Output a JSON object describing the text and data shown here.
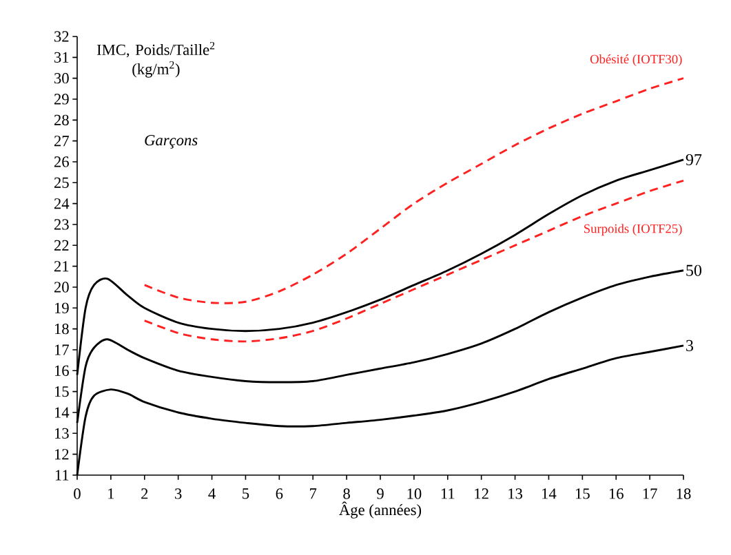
{
  "chart_data": {
    "type": "line",
    "xlabel": "Âge (années)",
    "ylabel": "IMC, Poids/Taille$^{2}$ (kg/m$^{2}$)",
    "annotations": [
      "Garçons"
    ],
    "xlim": [
      0,
      18
    ],
    "ylim": [
      11,
      32
    ],
    "xticks": [
      0,
      1,
      2,
      3,
      4,
      5,
      6,
      7,
      8,
      9,
      10,
      11,
      12,
      13,
      14,
      15,
      16,
      17,
      18
    ],
    "yticks": [
      11,
      12,
      13,
      14,
      15,
      16,
      17,
      18,
      19,
      20,
      21,
      22,
      23,
      24,
      25,
      26,
      27,
      28,
      29,
      30,
      31,
      32
    ],
    "grid": false,
    "legend": false,
    "marker": "none",
    "series": [
      {
        "name": "97",
        "color": "#000000",
        "line_style": "solid",
        "x": [
          0,
          0.25,
          0.5,
          0.9,
          1.5,
          2,
          3,
          4,
          5,
          6,
          7,
          8,
          9,
          10,
          11,
          12,
          13,
          14,
          15,
          16,
          17,
          18
        ],
        "values": [
          15.8,
          19,
          20.1,
          20.4,
          19.6,
          19.0,
          18.3,
          18.0,
          17.9,
          18.0,
          18.3,
          18.8,
          19.4,
          20.1,
          20.8,
          21.6,
          22.5,
          23.5,
          24.4,
          25.1,
          25.6,
          26.1
        ]
      },
      {
        "name": "50",
        "color": "#000000",
        "line_style": "solid",
        "x": [
          0,
          0.25,
          0.5,
          0.9,
          1.5,
          2,
          3,
          4,
          5,
          6,
          7,
          8,
          9,
          10,
          11,
          12,
          13,
          14,
          15,
          16,
          17,
          18
        ],
        "values": [
          13.5,
          16.2,
          17.1,
          17.5,
          17.0,
          16.6,
          16.0,
          15.7,
          15.5,
          15.45,
          15.5,
          15.8,
          16.1,
          16.4,
          16.8,
          17.3,
          18.0,
          18.8,
          19.5,
          20.1,
          20.5,
          20.8
        ]
      },
      {
        "name": "3",
        "color": "#000000",
        "line_style": "solid",
        "x": [
          0,
          0.25,
          0.5,
          1,
          1.5,
          2,
          3,
          4,
          5,
          6,
          7,
          8,
          9,
          10,
          11,
          12,
          13,
          14,
          15,
          16,
          17,
          18
        ],
        "values": [
          11.0,
          13.8,
          14.8,
          15.1,
          14.9,
          14.5,
          14.0,
          13.7,
          13.5,
          13.35,
          13.35,
          13.5,
          13.65,
          13.85,
          14.1,
          14.5,
          15.0,
          15.6,
          16.1,
          16.6,
          16.9,
          17.2
        ]
      },
      {
        "name": "Obésité (IOTF30)",
        "color": "#ff2020",
        "line_style": "dashed",
        "x": [
          2,
          3,
          4,
          5,
          6,
          7,
          8,
          9,
          10,
          11,
          12,
          13,
          14,
          15,
          16,
          17,
          18
        ],
        "values": [
          20.1,
          19.5,
          19.25,
          19.3,
          19.8,
          20.6,
          21.6,
          22.8,
          24.0,
          25.0,
          25.9,
          26.8,
          27.6,
          28.3,
          28.9,
          29.5,
          30.0
        ]
      },
      {
        "name": "Surpoids (IOTF25)",
        "color": "#ff2020",
        "line_style": "dashed",
        "x": [
          2,
          3,
          4,
          5,
          6,
          7,
          8,
          9,
          10,
          11,
          12,
          13,
          14,
          15,
          16,
          17,
          18
        ],
        "values": [
          18.4,
          17.8,
          17.5,
          17.4,
          17.55,
          17.9,
          18.5,
          19.2,
          19.9,
          20.6,
          21.3,
          22.0,
          22.7,
          23.4,
          24.0,
          24.6,
          25.1
        ]
      }
    ]
  }
}
